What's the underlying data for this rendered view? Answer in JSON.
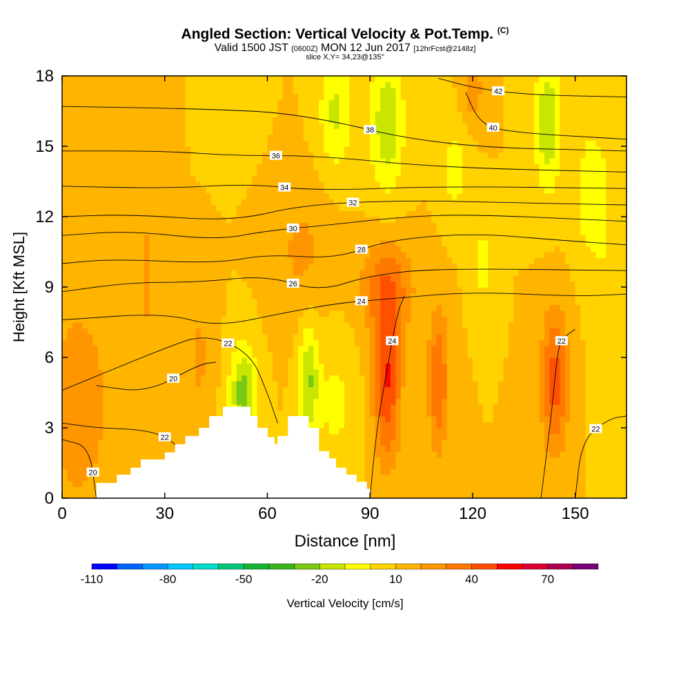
{
  "header": {
    "title": "Angled Section: Vertical Velocity & Pot.Temp.",
    "title_unit": "(C)",
    "valid_prefix": "Valid 1500 JST",
    "valid_utc": "(0600Z)",
    "valid_date": "MON 12 Jun 2017",
    "forecast": "[12hrFcst@2148z]",
    "slice": "slice X,Y= 34,23@135°"
  },
  "chart_data": {
    "type": "heatmap",
    "xlabel": "Distance [nm]",
    "ylabel": "Height [Kft MSL]",
    "xlim": [
      0,
      165
    ],
    "ylim": [
      0,
      18
    ],
    "x_ticks": [
      0,
      30,
      60,
      90,
      120,
      150
    ],
    "y_ticks": [
      0,
      3,
      6,
      9,
      12,
      15,
      18
    ],
    "colorbar": {
      "label": "Vertical Velocity [cm/s]",
      "min": -110,
      "max": 90,
      "step": 10,
      "tick_labels": [
        -110,
        -80,
        -50,
        -20,
        10,
        40,
        70
      ],
      "colors": [
        "#0000ff",
        "#0064ff",
        "#0096ff",
        "#00c8ff",
        "#00dcc8",
        "#00c878",
        "#14b432",
        "#3cb41e",
        "#78c814",
        "#c8e600",
        "#ffff00",
        "#ffd200",
        "#ffb400",
        "#ff9600",
        "#ff7800",
        "#ff5000",
        "#ff0000",
        "#dc0032",
        "#aa0050",
        "#780078"
      ]
    },
    "terrain": [
      {
        "x": 10,
        "top": 0.65
      },
      {
        "x": 16,
        "top": 1.0
      },
      {
        "x": 20,
        "top": 1.3
      },
      {
        "x": 23,
        "top": 1.65
      },
      {
        "x": 30,
        "top": 1.95
      },
      {
        "x": 33,
        "top": 2.3
      },
      {
        "x": 36,
        "top": 2.65
      },
      {
        "x": 40,
        "top": 3.0
      },
      {
        "x": 43,
        "top": 3.5
      },
      {
        "x": 47,
        "top": 3.9
      },
      {
        "x": 55,
        "top": 3.5
      },
      {
        "x": 57,
        "top": 3.0
      },
      {
        "x": 60,
        "top": 2.6
      },
      {
        "x": 62,
        "top": 2.3
      },
      {
        "x": 63,
        "top": 2.65
      },
      {
        "x": 66,
        "top": 3.5
      },
      {
        "x": 72,
        "top": 3.0
      },
      {
        "x": 75,
        "top": 2.0
      },
      {
        "x": 78,
        "top": 1.7
      },
      {
        "x": 80,
        "top": 1.3
      },
      {
        "x": 83,
        "top": 1.0
      },
      {
        "x": 86,
        "top": 0.7
      },
      {
        "x": 89,
        "top": 0.4
      },
      {
        "x": 90,
        "top": 0
      }
    ],
    "isentropes": [
      {
        "label": 20,
        "points": [
          [
            0,
            2.5
          ],
          [
            8,
            2.2
          ],
          [
            10,
            0
          ]
        ]
      },
      {
        "label": 20,
        "points": [
          [
            10,
            4.8
          ],
          [
            25,
            4.5
          ],
          [
            40,
            5.7
          ],
          [
            45,
            5.8
          ]
        ]
      },
      {
        "label": 22,
        "points": [
          [
            0,
            3.2
          ],
          [
            10,
            3.0
          ],
          [
            26,
            2.9
          ],
          [
            34,
            2.3
          ],
          [
            38,
            0.9
          ],
          [
            40,
            0
          ]
        ]
      },
      {
        "label": 22,
        "points": [
          [
            0,
            4.6
          ],
          [
            30,
            6.4
          ],
          [
            42,
            7.0
          ],
          [
            55,
            6.2
          ],
          [
            60,
            4.5
          ],
          [
            63,
            3.2
          ]
        ]
      },
      {
        "label": 22,
        "points": [
          [
            140,
            0
          ],
          [
            143,
            3.5
          ],
          [
            145,
            6.5
          ],
          [
            147,
            6.9
          ],
          [
            150,
            7.2
          ]
        ]
      },
      {
        "label": 22,
        "points": [
          [
            150,
            0
          ],
          [
            152,
            2.5
          ],
          [
            160,
            3.4
          ],
          [
            165,
            3.5
          ]
        ]
      },
      {
        "label": 24,
        "points": [
          [
            0,
            7.6
          ],
          [
            30,
            7.9
          ],
          [
            45,
            7.3
          ],
          [
            65,
            7.9
          ],
          [
            80,
            8.3
          ],
          [
            95,
            8.5
          ],
          [
            120,
            8.8
          ],
          [
            150,
            8.6
          ],
          [
            165,
            8.7
          ]
        ]
      },
      {
        "label": 24,
        "points": [
          [
            90,
            0
          ],
          [
            92,
            3
          ],
          [
            95,
            5.5
          ],
          [
            98,
            7.9
          ],
          [
            100,
            8.6
          ]
        ]
      },
      {
        "label": 26,
        "points": [
          [
            0,
            8.8
          ],
          [
            20,
            9.2
          ],
          [
            40,
            9.2
          ],
          [
            60,
            9.5
          ],
          [
            75,
            8.8
          ],
          [
            90,
            9.5
          ],
          [
            110,
            9.8
          ],
          [
            165,
            9.7
          ]
        ]
      },
      {
        "label": 28,
        "points": [
          [
            0,
            10.0
          ],
          [
            15,
            10.2
          ],
          [
            45,
            10.0
          ],
          [
            60,
            10.4
          ],
          [
            80,
            10.2
          ],
          [
            95,
            11.0
          ],
          [
            120,
            11.3
          ],
          [
            145,
            11.0
          ],
          [
            165,
            10.8
          ]
        ]
      },
      {
        "label": 30,
        "points": [
          [
            0,
            11.2
          ],
          [
            20,
            11.4
          ],
          [
            45,
            11.0
          ],
          [
            60,
            11.4
          ],
          [
            75,
            11.6
          ],
          [
            100,
            12.0
          ],
          [
            120,
            12.1
          ],
          [
            165,
            11.8
          ]
        ]
      },
      {
        "label": 32,
        "points": [
          [
            0,
            12.0
          ],
          [
            20,
            12.1
          ],
          [
            50,
            11.8
          ],
          [
            70,
            12.5
          ],
          [
            100,
            12.7
          ],
          [
            130,
            12.6
          ],
          [
            165,
            12.5
          ]
        ]
      },
      {
        "label": 34,
        "points": [
          [
            0,
            13.3
          ],
          [
            30,
            13.2
          ],
          [
            55,
            13.4
          ],
          [
            75,
            13.1
          ],
          [
            110,
            13.3
          ],
          [
            165,
            13.2
          ]
        ]
      },
      {
        "label": 36,
        "points": [
          [
            0,
            14.8
          ],
          [
            30,
            14.8
          ],
          [
            50,
            14.6
          ],
          [
            75,
            14.6
          ],
          [
            110,
            14.1
          ],
          [
            165,
            13.9
          ]
        ]
      },
      {
        "label": 38,
        "points": [
          [
            0,
            16.7
          ],
          [
            40,
            16.6
          ],
          [
            70,
            16.4
          ],
          [
            110,
            15.0
          ],
          [
            165,
            14.8
          ]
        ]
      },
      {
        "label": 40,
        "points": [
          [
            118,
            17.3
          ],
          [
            122,
            16.0
          ],
          [
            130,
            15.6
          ],
          [
            165,
            15.3
          ]
        ]
      },
      {
        "label": 42,
        "points": [
          [
            110,
            17.9
          ],
          [
            120,
            17.5
          ],
          [
            135,
            17.2
          ],
          [
            165,
            17.1
          ]
        ]
      }
    ]
  }
}
